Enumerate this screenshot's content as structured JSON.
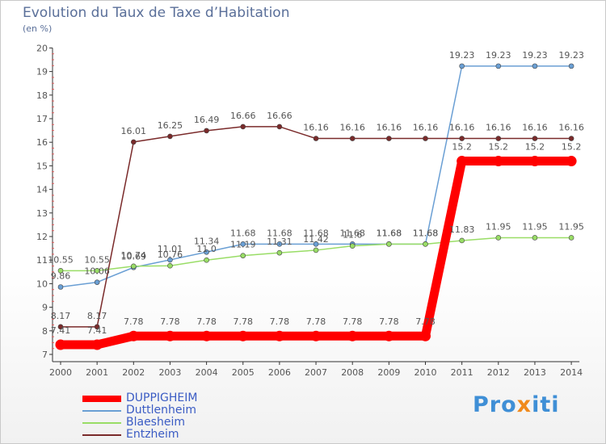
{
  "header": {
    "title": "Evolution du Taux de Taxe d’Habitation",
    "subtitle": "(en %)"
  },
  "brand": {
    "prefix": "Pro",
    "x": "x",
    "suffix": "iti"
  },
  "chart_data": {
    "type": "line",
    "title": "Evolution du Taux de Taxe d’Habitation",
    "subtitle": "(en %)",
    "x": [
      2000,
      2001,
      2002,
      2003,
      2004,
      2005,
      2006,
      2007,
      2008,
      2009,
      2010,
      2011,
      2012,
      2013,
      2014
    ],
    "ylim": [
      7,
      20
    ],
    "yticks": [
      7,
      8,
      9,
      10,
      11,
      12,
      13,
      14,
      15,
      16,
      17,
      18,
      19,
      20
    ],
    "grid": false,
    "legend": "bottom-left",
    "series": [
      {
        "name": "DUPPIGHEIM",
        "color": "#ff0000",
        "values": [
          7.41,
          7.41,
          7.78,
          7.78,
          7.78,
          7.78,
          7.78,
          7.78,
          7.78,
          7.78,
          7.78,
          15.2,
          15.2,
          15.2,
          15.2
        ],
        "labels": [
          "7.41",
          "7.41",
          "7.78",
          "7.78",
          "7.78",
          "7.78",
          "7.78",
          "7.78",
          "7.78",
          "7.78",
          "7.78",
          "15.2",
          "15.2",
          "15.2",
          "15.2"
        ]
      },
      {
        "name": "Duttlenheim",
        "color": "#6a9fd4",
        "values": [
          9.86,
          10.06,
          10.69,
          11.01,
          11.34,
          11.68,
          11.68,
          11.68,
          11.68,
          11.68,
          11.68,
          19.23,
          19.23,
          19.23,
          19.23
        ],
        "labels": [
          "9.86",
          "10.06",
          "10.69",
          "11.01",
          "11.34",
          "11.68",
          "11.68",
          "11.68",
          "11.68",
          "11.68",
          "11.68",
          "19.23",
          "19.23",
          "19.23",
          "19.23"
        ]
      },
      {
        "name": "Blaesheim",
        "color": "#99dd66",
        "values": [
          10.55,
          10.55,
          10.74,
          10.76,
          11.0,
          11.19,
          11.31,
          11.42,
          11.6,
          11.68,
          11.68,
          11.83,
          11.95,
          11.95,
          11.95
        ],
        "labels": [
          "10.55",
          "10.55",
          "10.74",
          "10.76",
          "11.0",
          "11.19",
          "11.31",
          "11.42",
          "11.6",
          "11.68",
          "11.68",
          "11.83",
          "11.95",
          "11.95",
          "11.95"
        ]
      },
      {
        "name": "Entzheim",
        "color": "#7a2a2a",
        "values": [
          8.17,
          8.17,
          16.01,
          16.25,
          16.49,
          16.66,
          16.66,
          16.16,
          16.16,
          16.16,
          16.16,
          16.16,
          16.16,
          16.16,
          16.16
        ],
        "labels": [
          "8.17",
          "8.17",
          "16.01",
          "16.25",
          "16.49",
          "16.66",
          "16.66",
          "16.16",
          "16.16",
          "16.16",
          "16.16",
          "16.16",
          "16.16",
          "16.16",
          "16.16"
        ]
      }
    ]
  }
}
